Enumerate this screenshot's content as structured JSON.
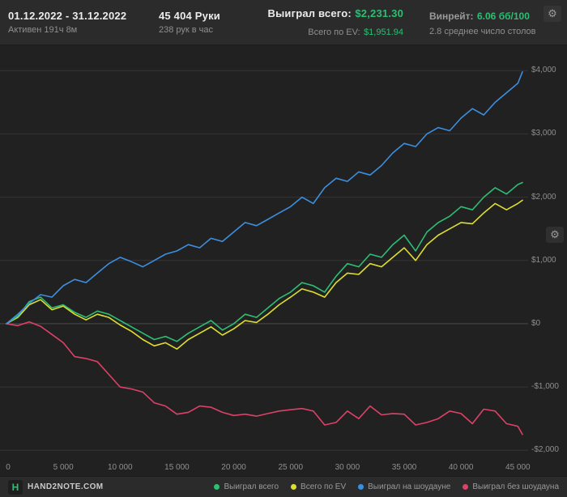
{
  "header": {
    "date_range": "01.12.2022 - 31.12.2022",
    "active_time": "Активен 191ч 8м",
    "hands": "45 404 Руки",
    "hands_per_hour": "238 рук в час",
    "won_total_label": "Выиграл всего:",
    "won_total_value": "$2,231.30",
    "ev_label": "Всего по EV:",
    "ev_value": "$1,951.94",
    "winrate_label": "Винрейт:",
    "winrate_value": "6.06 бб/100",
    "avg_tables": "2.8 среднее число столов"
  },
  "icons": {
    "gear": "⚙"
  },
  "footer": {
    "logo_letter": "H",
    "logo_text": "HAND2NOTE.COM"
  },
  "colors": {
    "accent_green": "#2dbe74",
    "line_total": "#2dbe74",
    "line_ev": "#dede30",
    "line_showdown": "#3c8ede",
    "line_nonshowdown": "#dd4168",
    "grid": "#353535",
    "zero_line": "#4a4a4a",
    "background": "#212121",
    "bar_background": "#2b2b2b"
  },
  "chart_data": {
    "type": "line",
    "title": "",
    "xlabel": "",
    "ylabel": "",
    "grid": "horizontal",
    "legend_position": "bottom",
    "xlim": [
      0,
      45404
    ],
    "ylim": [
      -2150,
      4400
    ],
    "x_ticks": [
      0,
      5000,
      10000,
      15000,
      20000,
      25000,
      30000,
      35000,
      40000,
      45000
    ],
    "x_tick_labels": [
      "0",
      "5 000",
      "10 000",
      "15 000",
      "20 000",
      "25 000",
      "30 000",
      "35 000",
      "40 000",
      "45 000"
    ],
    "y_ticks": [
      4000,
      3000,
      2000,
      1000,
      0,
      -1000,
      -2000
    ],
    "y_tick_labels": [
      "$4,000",
      "$3,000",
      "$2,000",
      "$1,000",
      "$0",
      "-$1,000",
      "-$2,000"
    ],
    "x": [
      0,
      1000,
      2000,
      3000,
      4000,
      5000,
      6000,
      7000,
      8000,
      9000,
      10000,
      11000,
      12000,
      13000,
      14000,
      15000,
      16000,
      17000,
      18000,
      19000,
      20000,
      21000,
      22000,
      23000,
      24000,
      25000,
      26000,
      27000,
      28000,
      29000,
      30000,
      31000,
      32000,
      33000,
      34000,
      35000,
      36000,
      37000,
      38000,
      39000,
      40000,
      41000,
      42000,
      43000,
      44000,
      45000,
      45404
    ],
    "series": [
      {
        "name": "Выиграл всего",
        "color": "#2dbe74",
        "final_value": 2231.3,
        "values": [
          0,
          120,
          350,
          420,
          250,
          300,
          180,
          100,
          200,
          150,
          50,
          -50,
          -150,
          -250,
          -200,
          -280,
          -150,
          -50,
          50,
          -100,
          0,
          150,
          100,
          250,
          400,
          500,
          650,
          600,
          500,
          750,
          950,
          900,
          1100,
          1050,
          1250,
          1400,
          1150,
          1450,
          1600,
          1700,
          1850,
          1800,
          2000,
          2150,
          2050,
          2200,
          2231
        ]
      },
      {
        "name": "Всего по EV",
        "color": "#dede30",
        "final_value": 1951.94,
        "values": [
          0,
          100,
          300,
          380,
          220,
          280,
          150,
          60,
          150,
          100,
          -20,
          -120,
          -250,
          -350,
          -300,
          -400,
          -250,
          -150,
          -50,
          -180,
          -80,
          50,
          20,
          150,
          300,
          420,
          550,
          500,
          420,
          650,
          800,
          780,
          950,
          900,
          1050,
          1200,
          1000,
          1250,
          1400,
          1500,
          1600,
          1580,
          1750,
          1900,
          1800,
          1900,
          1952
        ]
      },
      {
        "name": "Выиграл на шоудауне",
        "color": "#3c8ede",
        "final_value": 3980,
        "values": [
          0,
          150,
          320,
          460,
          420,
          600,
          700,
          650,
          800,
          950,
          1050,
          980,
          900,
          1000,
          1100,
          1150,
          1250,
          1200,
          1350,
          1300,
          1450,
          1600,
          1550,
          1650,
          1750,
          1850,
          2000,
          1900,
          2150,
          2300,
          2250,
          2400,
          2350,
          2500,
          2700,
          2850,
          2800,
          3000,
          3100,
          3050,
          3250,
          3400,
          3300,
          3500,
          3650,
          3800,
          3980
        ]
      },
      {
        "name": "Выиграл без шоудауна",
        "color": "#dd4168",
        "final_value": -1750,
        "values": [
          0,
          -30,
          30,
          -40,
          -170,
          -300,
          -520,
          -550,
          -600,
          -800,
          -1000,
          -1030,
          -1080,
          -1250,
          -1300,
          -1430,
          -1400,
          -1300,
          -1320,
          -1400,
          -1450,
          -1430,
          -1460,
          -1420,
          -1380,
          -1360,
          -1340,
          -1380,
          -1600,
          -1560,
          -1380,
          -1500,
          -1300,
          -1440,
          -1420,
          -1430,
          -1600,
          -1560,
          -1500,
          -1380,
          -1420,
          -1580,
          -1350,
          -1380,
          -1580,
          -1620,
          -1750
        ]
      }
    ]
  }
}
